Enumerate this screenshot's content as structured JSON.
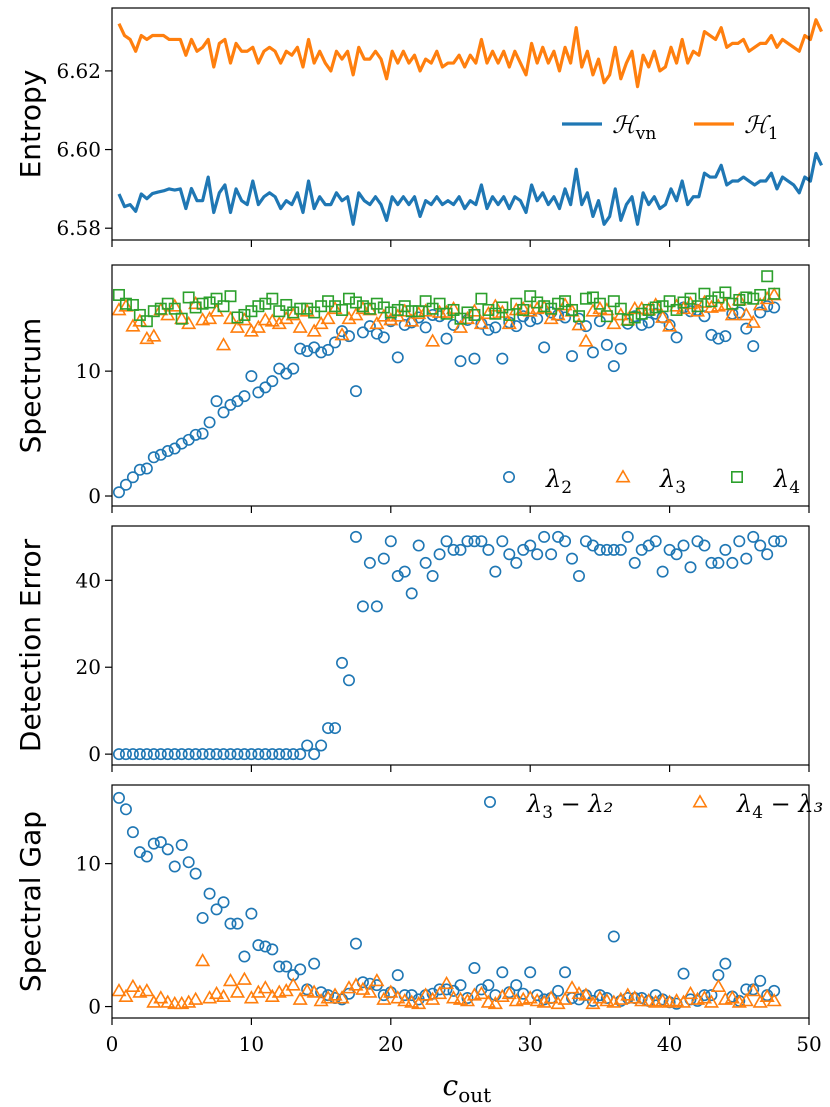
{
  "colors": {
    "blue": "#1f77b4",
    "orange": "#ff7f0e",
    "green": "#2ca02c"
  },
  "chart_data": [
    {
      "id": "entropy",
      "type": "line",
      "ylabel": "Entropy",
      "ylim": [
        6.577,
        6.636
      ],
      "yticks": [
        6.58,
        6.6,
        6.62
      ],
      "ytick_labels": [
        "6.58",
        "6.60",
        "6.62"
      ],
      "xlim": [
        0,
        50
      ],
      "legend": [
        "ℋvn",
        "ℋ1"
      ],
      "legend_position": "center-right",
      "series": [
        {
          "name": "H_vn",
          "color": "blue",
          "x_start": 0.5,
          "x_step": 0.4,
          "values": [
            6.5887,
            6.5855,
            6.586,
            6.5843,
            6.5887,
            6.5875,
            6.5888,
            6.5892,
            6.5895,
            6.59,
            6.5897,
            6.59,
            6.585,
            6.5901,
            6.587,
            6.587,
            6.593,
            6.584,
            6.589,
            6.591,
            6.584,
            6.59,
            6.587,
            6.586,
            6.592,
            6.586,
            6.588,
            6.589,
            6.588,
            6.585,
            6.587,
            6.586,
            6.589,
            6.584,
            6.592,
            6.585,
            6.588,
            6.586,
            6.586,
            6.589,
            6.587,
            6.588,
            6.581,
            6.589,
            6.587,
            6.586,
            6.588,
            6.586,
            6.582,
            6.588,
            6.586,
            6.588,
            6.586,
            6.588,
            6.583,
            6.587,
            6.586,
            6.588,
            6.586,
            6.587,
            6.586,
            6.588,
            6.585,
            6.587,
            6.586,
            6.591,
            6.585,
            6.588,
            6.586,
            6.588,
            6.585,
            6.588,
            6.587,
            6.584,
            6.591,
            6.587,
            6.589,
            6.586,
            6.588,
            6.585,
            6.59,
            6.586,
            6.595,
            6.586,
            6.589,
            6.583,
            6.587,
            6.581,
            6.583,
            6.59,
            6.582,
            6.586,
            6.588,
            6.581,
            6.589,
            6.586,
            6.588,
            6.585,
            6.586,
            6.59,
            6.587,
            6.592,
            6.586,
            6.588,
            6.588,
            6.594,
            6.593,
            6.593,
            6.596,
            6.591,
            6.592,
            6.592,
            6.593,
            6.592,
            6.591,
            6.592,
            6.592,
            6.594,
            6.59,
            6.593,
            6.592,
            6.591,
            6.589,
            6.593,
            6.592,
            6.599,
            6.596
          ]
        },
        {
          "name": "H_1",
          "color": "orange",
          "x_start": 0.5,
          "x_step": 0.4,
          "values": [
            6.632,
            6.629,
            6.628,
            6.625,
            6.629,
            6.628,
            6.629,
            6.629,
            6.629,
            6.628,
            6.628,
            6.628,
            6.624,
            6.628,
            6.625,
            6.626,
            6.628,
            6.621,
            6.627,
            6.628,
            6.622,
            6.627,
            6.625,
            6.625,
            6.626,
            6.622,
            6.625,
            6.626,
            6.625,
            6.622,
            6.625,
            6.624,
            6.626,
            6.621,
            6.628,
            6.622,
            6.625,
            6.622,
            6.62,
            6.625,
            6.623,
            6.625,
            6.619,
            6.626,
            6.623,
            6.623,
            6.625,
            6.623,
            6.618,
            6.625,
            6.622,
            6.625,
            6.622,
            6.624,
            6.62,
            6.623,
            6.622,
            6.625,
            6.621,
            6.622,
            6.622,
            6.624,
            6.621,
            6.624,
            6.622,
            6.628,
            6.622,
            6.625,
            6.622,
            6.625,
            6.621,
            6.625,
            6.622,
            6.619,
            6.627,
            6.622,
            6.626,
            6.622,
            6.625,
            6.62,
            6.626,
            6.622,
            6.631,
            6.621,
            6.625,
            6.619,
            6.623,
            6.617,
            6.619,
            6.626,
            6.618,
            6.622,
            6.625,
            6.616,
            6.624,
            6.621,
            6.625,
            6.62,
            6.621,
            6.626,
            6.622,
            6.628,
            6.622,
            6.625,
            6.624,
            6.63,
            6.629,
            6.628,
            6.631,
            6.626,
            6.627,
            6.627,
            6.628,
            6.625,
            6.626,
            6.627,
            6.627,
            6.629,
            6.626,
            6.628,
            6.627,
            6.626,
            6.625,
            6.629,
            6.628,
            6.633,
            6.63
          ]
        }
      ]
    },
    {
      "id": "spectrum",
      "type": "scatter",
      "ylabel": "Spectrum",
      "ylim": [
        -0.8,
        18.5
      ],
      "yticks": [
        0,
        10
      ],
      "ytick_labels": [
        "0",
        "10"
      ],
      "xlim": [
        0,
        50
      ],
      "legend": [
        "λ2",
        "λ3",
        "λ4"
      ],
      "legend_position": "lower-right",
      "series": [
        {
          "name": "lambda_2",
          "color": "blue",
          "marker": "circle",
          "x_start": 0.5,
          "x_step": 0.5,
          "values": [
            0.3,
            0.9,
            1.5,
            2.1,
            2.2,
            3.1,
            3.3,
            3.6,
            3.8,
            4.2,
            4.5,
            4.9,
            5.0,
            5.9,
            7.6,
            6.7,
            7.3,
            7.6,
            8.0,
            9.6,
            8.3,
            8.7,
            9.2,
            10.2,
            9.8,
            10.2,
            11.8,
            11.6,
            11.9,
            11.5,
            11.7,
            12.3,
            13.2,
            12.8,
            8.4,
            13.1,
            13.6,
            13.0,
            12.7,
            14.0,
            11.1,
            13.7,
            13.9,
            14.3,
            13.5,
            14.5,
            14.4,
            12.6,
            13.7,
            10.8,
            14.1,
            11.0,
            13.8,
            13.3,
            13.5,
            11.0,
            13.9,
            13.6,
            14.4,
            14.0,
            14.2,
            11.9,
            14.7,
            14.5,
            14.3,
            11.2,
            14.2,
            13.6,
            11.5,
            14.0,
            12.1,
            10.4,
            11.8,
            13.8,
            14.4,
            13.7,
            13.9,
            14.6,
            14.3,
            13.7,
            12.7,
            15.1,
            14.8,
            14.9,
            14.4,
            12.9,
            12.6,
            12.8,
            14.6,
            14.7,
            13.4,
            12.0,
            14.7,
            15.2,
            15.1
          ]
        },
        {
          "name": "lambda_3",
          "color": "orange",
          "marker": "triangle",
          "x_start": 0.5,
          "x_step": 0.5,
          "values": [
            14.9,
            15.2,
            13.6,
            14.0,
            12.6,
            12.8,
            14.9,
            14.5,
            15.2,
            14.2,
            13.8,
            15.4,
            14.1,
            14.2,
            14.8,
            12.1,
            14.2,
            13.5,
            14.1,
            13.2,
            13.5,
            14.1,
            14.0,
            13.8,
            14.2,
            14.5,
            13.5,
            14.8,
            13.2,
            13.8,
            14.2,
            15.0,
            12.9,
            14.2,
            14.5,
            15.0,
            14.9,
            13.8,
            14.4,
            14.1,
            14.4,
            14.8,
            14.0,
            14.6,
            14.8,
            12.4,
            14.7,
            14.7,
            15.0,
            13.5,
            14.2,
            14.8,
            13.8,
            14.6,
            15.2,
            14.7,
            13.8,
            14.9,
            15.0,
            14.8,
            15.0,
            15.1,
            14.2,
            14.5,
            15.3,
            14.8,
            13.7,
            12.4,
            14.8,
            15.0,
            14.9,
            13.8,
            14.5,
            14.1,
            15.0,
            15.0,
            14.9,
            15.3,
            14.3,
            13.6,
            15.2,
            15.0,
            15.4,
            14.8,
            15.5,
            15.1,
            15.2,
            15.3,
            14.5,
            15.7,
            14.5,
            13.9,
            15.3,
            15.8,
            16.1
          ]
        },
        {
          "name": "lambda_4",
          "color": "green",
          "marker": "square",
          "x_start": 0.5,
          "x_step": 0.5,
          "values": [
            16.1,
            15.4,
            15.3,
            14.5,
            14.0,
            14.8,
            15.0,
            15.4,
            15.0,
            14.2,
            15.9,
            15.1,
            15.4,
            15.5,
            15.8,
            15.2,
            16.0,
            14.3,
            14.5,
            14.8,
            15.2,
            15.4,
            15.8,
            14.8,
            15.3,
            14.7,
            15.0,
            15.0,
            14.7,
            15.2,
            15.6,
            15.2,
            14.9,
            15.8,
            15.5,
            15.2,
            15.0,
            15.4,
            15.1,
            14.7,
            14.9,
            15.2,
            14.8,
            14.8,
            15.6,
            15.0,
            15.4,
            14.6,
            14.9,
            14.2,
            14.7,
            14.5,
            15.8,
            14.9,
            14.6,
            15.1,
            14.5,
            15.4,
            14.9,
            16.0,
            15.5,
            15.2,
            15.0,
            15.4,
            15.6,
            14.9,
            14.4,
            15.8,
            15.9,
            15.4,
            14.4,
            15.6,
            15.0,
            14.1,
            14.3,
            14.6,
            14.9,
            15.1,
            15.2,
            15.6,
            14.9,
            15.5,
            15.8,
            15.2,
            16.2,
            15.6,
            15.9,
            16.3,
            15.4,
            15.7,
            15.9,
            15.8,
            16.1,
            17.6,
            16.2
          ]
        }
      ]
    },
    {
      "id": "detection",
      "type": "scatter",
      "ylabel": "Detection Error",
      "ylim": [
        -2.5,
        52.5
      ],
      "yticks": [
        0,
        20,
        40
      ],
      "ytick_labels": [
        "0",
        "20",
        "40"
      ],
      "xlim": [
        0,
        50
      ],
      "series": [
        {
          "name": "detection_error",
          "color": "blue",
          "marker": "circle",
          "x_start": 0.5,
          "x_step": 0.5,
          "values": [
            0,
            0,
            0,
            0,
            0,
            0,
            0,
            0,
            0,
            0,
            0,
            0,
            0,
            0,
            0,
            0,
            0,
            0,
            0,
            0,
            0,
            0,
            0,
            0,
            0,
            0,
            0,
            2,
            0,
            2,
            6,
            6,
            21,
            17,
            50,
            34,
            44,
            34,
            45,
            49,
            41,
            42,
            37,
            48,
            44,
            41,
            46,
            49,
            47,
            47,
            49,
            49,
            49,
            47,
            42,
            49,
            46,
            44,
            47,
            48,
            46,
            50,
            46,
            50,
            49,
            45,
            41,
            49,
            48,
            47,
            47,
            47,
            47,
            50,
            44,
            47,
            48,
            49,
            42,
            47,
            46,
            48,
            43,
            49,
            48,
            44,
            44,
            47,
            44,
            49,
            45,
            50,
            48,
            46,
            49,
            49
          ]
        }
      ]
    },
    {
      "id": "gap",
      "type": "scatter",
      "ylabel": "Spectral Gap",
      "ylim": [
        -0.8,
        15.5
      ],
      "yticks": [
        0,
        10
      ],
      "ytick_labels": [
        "0",
        "10"
      ],
      "xlim": [
        0,
        50
      ],
      "xticks": [
        0,
        10,
        20,
        30,
        40,
        50
      ],
      "xtick_labels": [
        "0",
        "10",
        "20",
        "30",
        "40",
        "50"
      ],
      "xlabel": "c",
      "xlabel_sub": "out",
      "legend": [
        "λ3 − λ2",
        "λ4 − λ3"
      ],
      "legend_position": "upper-right",
      "series": [
        {
          "name": "lambda3_minus_lambda2",
          "color": "blue",
          "marker": "circle",
          "x_start": 0.5,
          "x_step": 0.5,
          "values": [
            14.6,
            13.8,
            12.2,
            10.8,
            10.5,
            11.4,
            11.5,
            11.0,
            9.8,
            11.3,
            10.1,
            9.3,
            6.2,
            7.9,
            6.8,
            7.3,
            5.8,
            5.8,
            3.5,
            6.5,
            4.3,
            4.2,
            4.0,
            2.8,
            2.8,
            2.2,
            2.6,
            1.2,
            3.0,
            1.0,
            0.8,
            0.6,
            0.5,
            0.9,
            4.4,
            1.7,
            1.6,
            1.5,
            0.8,
            1.0,
            2.2,
            0.8,
            0.8,
            0.5,
            0.8,
            0.9,
            1.2,
            1.2,
            1.1,
            1.5,
            0.6,
            2.7,
            1.2,
            1.5,
            0.8,
            2.4,
            1.0,
            1.5,
            0.9,
            2.4,
            0.8,
            0.5,
            0.6,
            1.1,
            2.4,
            0.6,
            0.5,
            0.8,
            0.4,
            0.8,
            0.6,
            4.9,
            0.4,
            0.6,
            0.6,
            0.6,
            0.4,
            0.8,
            0.5,
            0.3,
            0.2,
            2.3,
            0.5,
            0.4,
            0.8,
            0.8,
            2.2,
            3.0,
            0.7,
            0.4,
            1.2,
            1.2,
            1.8,
            0.8,
            1.1
          ]
        },
        {
          "name": "lambda4_minus_lambda3",
          "color": "orange",
          "marker": "triangle",
          "x_start": 0.5,
          "x_step": 0.5,
          "values": [
            1.1,
            0.7,
            1.4,
            1.0,
            1.1,
            0.3,
            0.6,
            0.3,
            0.2,
            0.2,
            0.3,
            0.5,
            3.2,
            0.6,
            0.9,
            0.7,
            1.8,
            1.0,
            1.9,
            0.6,
            1.0,
            1.3,
            0.7,
            1.0,
            1.1,
            1.5,
            0.5,
            1.1,
            1.0,
            0.4,
            0.6,
            0.8,
            0.6,
            1.3,
            1.5,
            1.2,
            1.0,
            1.8,
            0.5,
            1.0,
            0.6,
            0.4,
            0.3,
            0.2,
            0.8,
            0.5,
            0.9,
            1.6,
            0.6,
            0.5,
            0.4,
            0.8,
            0.9,
            0.3,
            0.2,
            0.7,
            0.9,
            0.4,
            0.5,
            0.6,
            0.4,
            0.3,
            0.6,
            0.2,
            0.5,
            1.3,
            0.9,
            0.8,
            0.2,
            0.6,
            0.4,
            0.3,
            0.5,
            0.8,
            0.6,
            0.4,
            0.4,
            0.3,
            0.4,
            0.3,
            0.4,
            0.3,
            0.9,
            0.5,
            0.6,
            0.3,
            1.4,
            0.5,
            0.6,
            0.3,
            0.4,
            1.1,
            0.3,
            0.7,
            0.4
          ]
        }
      ]
    }
  ]
}
